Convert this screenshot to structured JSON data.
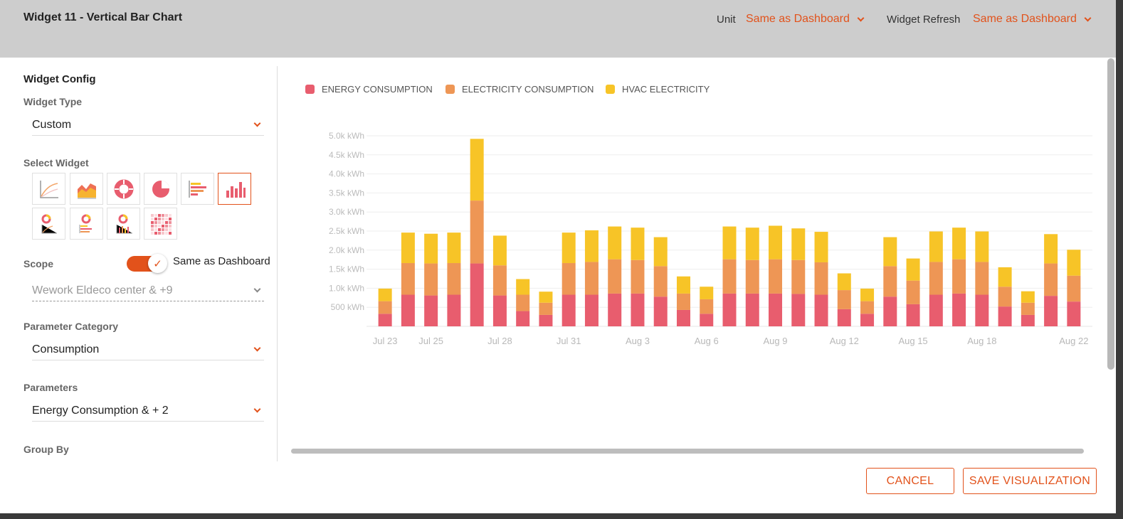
{
  "header": {
    "title": "Widget 11 - Vertical Bar Chart",
    "unit_label": "Unit",
    "unit_value": "Same as Dashboard",
    "refresh_label": "Widget Refresh",
    "refresh_value": "Same as Dashboard"
  },
  "config": {
    "section_title": "Widget Config",
    "widget_type_label": "Widget Type",
    "widget_type_value": "Custom",
    "select_widget_label": "Select Widget",
    "widget_icons": [
      "line-chart-icon",
      "area-chart-icon",
      "donut-chart-icon",
      "pie-chart-icon",
      "horizontal-bar-chart-icon",
      "vertical-bar-chart-icon",
      "donut-line-combo-icon",
      "donut-hbar-combo-icon",
      "donut-vbar-combo-icon",
      "heatmap-icon"
    ],
    "selected_widget": "vertical-bar-chart-icon",
    "scope_label": "Scope",
    "scope_toggle_on": true,
    "scope_toggle_label": "Same as Dashboard",
    "scope_value": "Wework Eldeco center & +9",
    "param_category_label": "Parameter Category",
    "param_category_value": "Consumption",
    "parameters_label": "Parameters",
    "parameters_value": "Energy Consumption & + 2",
    "group_by_label": "Group By"
  },
  "colors": {
    "accent": "#e2521b",
    "energy": "#e85d6e",
    "electricity": "#ee9655",
    "hvac": "#f7c427"
  },
  "chart_data": {
    "type": "bar",
    "stacked": true,
    "categories": [
      "Jul 23",
      "Jul 24",
      "Jul 25",
      "Jul 26",
      "Jul 27",
      "Jul 28",
      "Jul 29",
      "Jul 30",
      "Jul 31",
      "Aug 1",
      "Aug 2",
      "Aug 3",
      "Aug 4",
      "Aug 5",
      "Aug 6",
      "Aug 7",
      "Aug 8",
      "Aug 9",
      "Aug 10",
      "Aug 11",
      "Aug 12",
      "Aug 13",
      "Aug 14",
      "Aug 15",
      "Aug 16",
      "Aug 17",
      "Aug 18",
      "Aug 19",
      "Aug 20",
      "Aug 21",
      "Aug 22"
    ],
    "x_tick_labels": [
      "Jul 23",
      "Jul 25",
      "Jul 28",
      "Jul 31",
      "Aug 3",
      "Aug 6",
      "Aug 9",
      "Aug 12",
      "Aug 15",
      "Aug 18",
      "Aug 22"
    ],
    "series": [
      {
        "name": "ENERGY CONSUMPTION",
        "values": [
          330,
          830,
          810,
          830,
          1650,
          810,
          400,
          300,
          830,
          830,
          860,
          860,
          780,
          430,
          330,
          860,
          860,
          860,
          850,
          830,
          450,
          330,
          780,
          580,
          830,
          860,
          830,
          520,
          300,
          800,
          650
        ]
      },
      {
        "name": "ELECTRICITY CONSUMPTION",
        "values": [
          330,
          830,
          840,
          830,
          1650,
          790,
          430,
          320,
          830,
          860,
          900,
          880,
          800,
          430,
          380,
          900,
          880,
          900,
          890,
          850,
          500,
          330,
          800,
          620,
          860,
          900,
          860,
          520,
          320,
          850,
          680
        ]
      },
      {
        "name": "HVAC ELECTRICITY",
        "values": [
          330,
          800,
          780,
          800,
          1620,
          780,
          410,
          290,
          800,
          830,
          860,
          850,
          760,
          450,
          330,
          860,
          850,
          880,
          830,
          800,
          440,
          330,
          760,
          580,
          800,
          830,
          800,
          510,
          300,
          770,
          680
        ]
      }
    ],
    "y_tick_labels": [
      "500 kWh",
      "1.0k kWh",
      "1.5k kWh",
      "2.0k kWh",
      "2.5k kWh",
      "3.0k kWh",
      "3.5k kWh",
      "4.0k kWh",
      "4.5k kWh",
      "5.0k kWh"
    ],
    "ylim": [
      0,
      5000
    ],
    "grid": true,
    "legend": "top-left"
  },
  "footer": {
    "cancel_label": "CANCEL",
    "save_label": "SAVE VISUALIZATION"
  }
}
